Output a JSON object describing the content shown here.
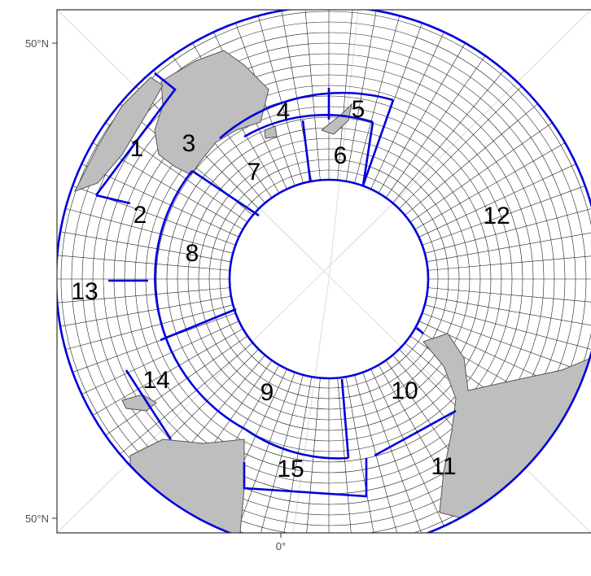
{
  "axes": {
    "y_labels": [
      "50°N",
      "50°N"
    ],
    "x_labels": [
      "0°"
    ]
  },
  "regions": [
    {
      "label": "1"
    },
    {
      "label": "2"
    },
    {
      "label": "3"
    },
    {
      "label": "4"
    },
    {
      "label": "5"
    },
    {
      "label": "6"
    },
    {
      "label": "7"
    },
    {
      "label": "8"
    },
    {
      "label": "9"
    },
    {
      "label": "10"
    },
    {
      "label": "11"
    },
    {
      "label": "12"
    },
    {
      "label": "13"
    },
    {
      "label": "14"
    },
    {
      "label": "15"
    }
  ]
}
